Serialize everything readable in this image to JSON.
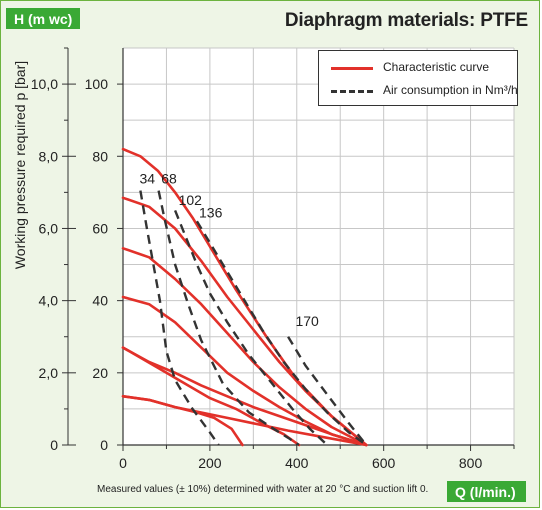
{
  "badges": {
    "y_unit": "H (m wc)",
    "x_unit": "Q (l/min.)"
  },
  "footnote": "Measured values (± 10%) determined with water at 20 °C and suction lift 0.",
  "colors": {
    "curve": "#e2312a",
    "air": "#333333",
    "badge": "#3aa935",
    "background": "#eef5e6",
    "grid": "#c7c7c7"
  },
  "chart_data": {
    "type": "line",
    "title": "Diaphragm materials: PTFE",
    "ylabel": "Working pressure required p [bar]",
    "xlabel": "Q (l/min.)",
    "xlim": [
      0,
      900
    ],
    "ylim": [
      0,
      11
    ],
    "grid": true,
    "legend_position": "top-right",
    "legend": [
      {
        "label": "Characteristic curve",
        "style": "solid"
      },
      {
        "label": "Air consumption in Nm³/h",
        "style": "dashed"
      }
    ],
    "x_ticks": [
      "0",
      "200",
      "400",
      "600",
      "800"
    ],
    "y_ticks_bar": [
      "0",
      "2,0",
      "4,0",
      "6,0",
      "8,0",
      "10,0"
    ],
    "y_ticks_h": [
      "0",
      "20",
      "40",
      "60",
      "80",
      "100"
    ],
    "characteristic_curves": [
      {
        "style": "solid",
        "x": [
          0,
          40,
          80,
          120,
          160,
          200,
          260,
          330,
          400,
          480,
          560
        ],
        "y": [
          8.2,
          8.0,
          7.6,
          7.0,
          6.3,
          5.5,
          4.3,
          3.0,
          1.8,
          0.8,
          0.0
        ]
      },
      {
        "style": "solid",
        "x": [
          0,
          60,
          120,
          180,
          240,
          300,
          360,
          420,
          480,
          560
        ],
        "y": [
          6.85,
          6.6,
          6.0,
          5.1,
          4.1,
          3.2,
          2.3,
          1.5,
          0.8,
          0.0
        ]
      },
      {
        "style": "solid",
        "x": [
          0,
          60,
          120,
          180,
          240,
          300,
          360,
          420,
          480,
          560
        ],
        "y": [
          5.45,
          5.2,
          4.6,
          3.9,
          3.1,
          2.3,
          1.6,
          1.0,
          0.5,
          0.0
        ]
      },
      {
        "style": "solid",
        "x": [
          0,
          60,
          120,
          180,
          240,
          300,
          360,
          420,
          480,
          560
        ],
        "y": [
          4.1,
          3.9,
          3.4,
          2.7,
          2.0,
          1.5,
          1.05,
          0.65,
          0.3,
          0.0
        ]
      },
      {
        "style": "solid",
        "x": [
          0,
          60,
          120,
          180,
          240,
          300,
          360,
          420,
          480,
          560
        ],
        "y": [
          2.7,
          2.3,
          2.0,
          1.65,
          1.35,
          1.05,
          0.8,
          0.55,
          0.3,
          0.0
        ]
      },
      {
        "style": "solid",
        "x": [
          0,
          60,
          120,
          180,
          240,
          300,
          380,
          470,
          560
        ],
        "y": [
          1.35,
          1.25,
          1.05,
          0.9,
          0.75,
          0.6,
          0.4,
          0.2,
          0.0
        ]
      },
      {
        "style": "solid",
        "x": [
          0,
          60,
          120,
          170,
          210,
          250,
          275
        ],
        "y": [
          1.35,
          1.25,
          1.05,
          0.9,
          0.75,
          0.45,
          0.0
        ]
      },
      {
        "style": "solid",
        "x": [
          0,
          100,
          200,
          260,
          320,
          370,
          405
        ],
        "y": [
          2.7,
          2.0,
          1.3,
          1.0,
          0.6,
          0.3,
          0.0
        ]
      }
    ],
    "air_consumption_curves": [
      {
        "label": "34",
        "x": [
          40,
          55,
          70,
          85,
          100,
          120,
          160,
          200,
          220
        ],
        "y": [
          7.05,
          6.0,
          5.0,
          4.0,
          2.6,
          1.8,
          1.0,
          0.35,
          0.0
        ]
      },
      {
        "label": "68",
        "x": [
          82,
          95,
          120,
          150,
          180,
          230,
          290,
          340,
          380,
          405
        ],
        "y": [
          7.05,
          6.3,
          5.0,
          3.9,
          2.9,
          1.7,
          0.9,
          0.5,
          0.2,
          0.0
        ]
      },
      {
        "label": "102",
        "x": [
          120,
          140,
          170,
          200,
          240,
          290,
          340,
          390,
          430,
          470
        ],
        "y": [
          6.5,
          5.9,
          5.0,
          4.2,
          3.4,
          2.5,
          1.75,
          1.0,
          0.45,
          0.0
        ]
      },
      {
        "label": "136",
        "x": [
          170,
          200,
          240,
          280,
          320,
          370,
          420,
          470,
          520,
          560
        ],
        "y": [
          6.2,
          5.6,
          4.8,
          4.0,
          3.2,
          2.3,
          1.55,
          0.9,
          0.35,
          0.0
        ]
      },
      {
        "label": "170",
        "x": [
          380,
          420,
          470,
          520,
          560
        ],
        "y": [
          3.0,
          2.2,
          1.4,
          0.6,
          0.0
        ]
      }
    ],
    "label_positions": [
      {
        "label": "34",
        "x": 38,
        "y": 7.25
      },
      {
        "label": "68",
        "x": 88,
        "y": 7.25
      },
      {
        "label": "102",
        "x": 128,
        "y": 6.65
      },
      {
        "label": "136",
        "x": 175,
        "y": 6.3
      },
      {
        "label": "170",
        "x": 397,
        "y": 3.3
      }
    ]
  }
}
